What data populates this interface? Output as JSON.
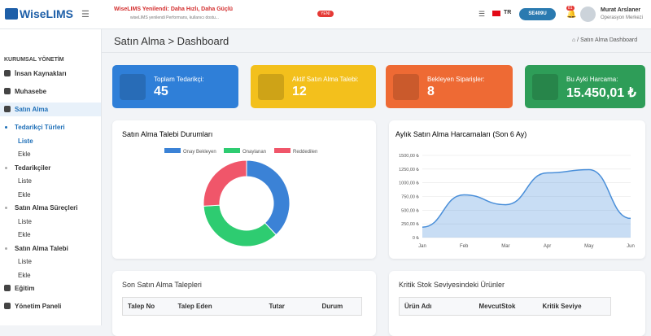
{
  "header": {
    "brand": "WiseLIMS",
    "announcement_title": "WiseLIMS Yenilendi: Daha Hızlı, Daha Güçlü",
    "announcement_text": "wiseLIMS yenilendi Performans, kullanıcı dostu...",
    "badge": "YENİ",
    "language": "TR",
    "button": "SE409U",
    "notifications": "81",
    "user_name": "Murat Arslaner",
    "user_role": "Operasyon Merkezi"
  },
  "sidebar": {
    "section": "KURUMSAL YÖNETİM",
    "items": [
      {
        "label": "İnsan Kaynakları",
        "level": 0
      },
      {
        "label": "Muhasebe",
        "level": 0
      },
      {
        "label": "Satın Alma",
        "level": 0,
        "active": true
      },
      {
        "label": "Tedarikçi Türleri",
        "level": 1,
        "active": true
      },
      {
        "label": "Liste",
        "level": 2,
        "active": true
      },
      {
        "label": "Ekle",
        "level": 2
      },
      {
        "label": "Tedarikçiler",
        "level": 1
      },
      {
        "label": "Liste",
        "level": 2
      },
      {
        "label": "Ekle",
        "level": 2
      },
      {
        "label": "Satın Alma Süreçleri",
        "level": 1
      },
      {
        "label": "Liste",
        "level": 2
      },
      {
        "label": "Ekle",
        "level": 2
      },
      {
        "label": "Satın Alma Talebi",
        "level": 1
      },
      {
        "label": "Liste",
        "level": 2
      },
      {
        "label": "Ekle",
        "level": 2
      },
      {
        "label": "Eğitim",
        "level": 0
      },
      {
        "label": "Yönetim Paneli",
        "level": 0
      }
    ]
  },
  "page": {
    "title": "Satın Alma > Dashboard",
    "breadcrumb": "Satın Alma Dashboard"
  },
  "cards": [
    {
      "label": "Toplam Tedarikçi:",
      "value": "45",
      "color": "#2f7fd8"
    },
    {
      "label": "Aktif Satın Alma Talebi:",
      "value": "12",
      "color": "#f3c01c"
    },
    {
      "label": "Bekleyen Siparişler:",
      "value": "8",
      "color": "#ee6a34"
    },
    {
      "label": "Bu Ayki Harcama:",
      "value": "15.450,01 ₺",
      "color": "#2e9d58"
    }
  ],
  "chart_data": [
    {
      "type": "donut",
      "title": "Satın Alma Talebi Durumları",
      "series": [
        {
          "name": "Onay Bekleyen",
          "color": "#3b82d6",
          "value": 38
        },
        {
          "name": "Onaylanan",
          "color": "#2ecc71",
          "value": 36
        },
        {
          "name": "Reddedilen",
          "color": "#f0566a",
          "value": 26
        }
      ]
    },
    {
      "type": "area",
      "title": "Aylık Satın Alma Harcamaları (Son 6 Ay)",
      "categories": [
        "Jan",
        "Feb",
        "Mar",
        "Apr",
        "May",
        "Jun"
      ],
      "values": [
        190,
        780,
        600,
        1180,
        1240,
        350
      ],
      "color": "#4a8fd9",
      "ylim": [
        0,
        1500
      ],
      "yticks": [
        {
          "value": 0,
          "label": "0 ₺"
        },
        {
          "value": 250,
          "label": "250,00 ₺"
        },
        {
          "value": 500,
          "label": "500,00 ₺"
        },
        {
          "value": 750,
          "label": "750,00 ₺"
        },
        {
          "value": 1000,
          "label": "1000,00 ₺"
        },
        {
          "value": 1250,
          "label": "1250,00 ₺"
        },
        {
          "value": 1500,
          "label": "1500,00 ₺"
        }
      ],
      "grid": true
    }
  ],
  "tables": [
    {
      "title": "Son Satın Alma Talepleri",
      "headers": [
        "Talep No",
        "Talep Eden",
        "Tutar",
        "Durum"
      ]
    },
    {
      "title": "Kritik Stok Seviyesindeki Ürünler",
      "headers": [
        "Ürün Adı",
        "MevcutStok",
        "Kritik Seviye"
      ]
    }
  ]
}
